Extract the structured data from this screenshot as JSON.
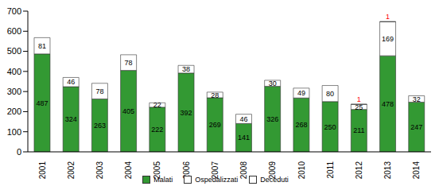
{
  "chart_data": {
    "type": "bar",
    "stacked": true,
    "data_labels": true,
    "legend": "bottom",
    "grid": false,
    "categories": [
      "2001",
      "2002",
      "2003",
      "2004",
      "2005",
      "2006",
      "2007",
      "2008",
      "2009",
      "2010",
      "2011",
      "2012",
      "2013",
      "2014"
    ],
    "series": [
      {
        "name": "Malati",
        "color": "#339933",
        "values": [
          487,
          324,
          263,
          405,
          222,
          392,
          269,
          141,
          326,
          268,
          250,
          211,
          478,
          247
        ]
      },
      {
        "name": "Ospedalizzati",
        "color": "#ffffff",
        "values": [
          81,
          46,
          78,
          78,
          22,
          38,
          28,
          46,
          30,
          49,
          80,
          25,
          169,
          32
        ]
      },
      {
        "name": "Deceduti",
        "color": "#ffffff",
        "values": [
          0,
          0,
          0,
          0,
          0,
          0,
          0,
          0,
          0,
          0,
          0,
          1,
          1,
          0
        ]
      }
    ],
    "ylim": [
      0,
      700
    ],
    "yticks": [
      0,
      100,
      200,
      300,
      400,
      500,
      600,
      700
    ]
  }
}
